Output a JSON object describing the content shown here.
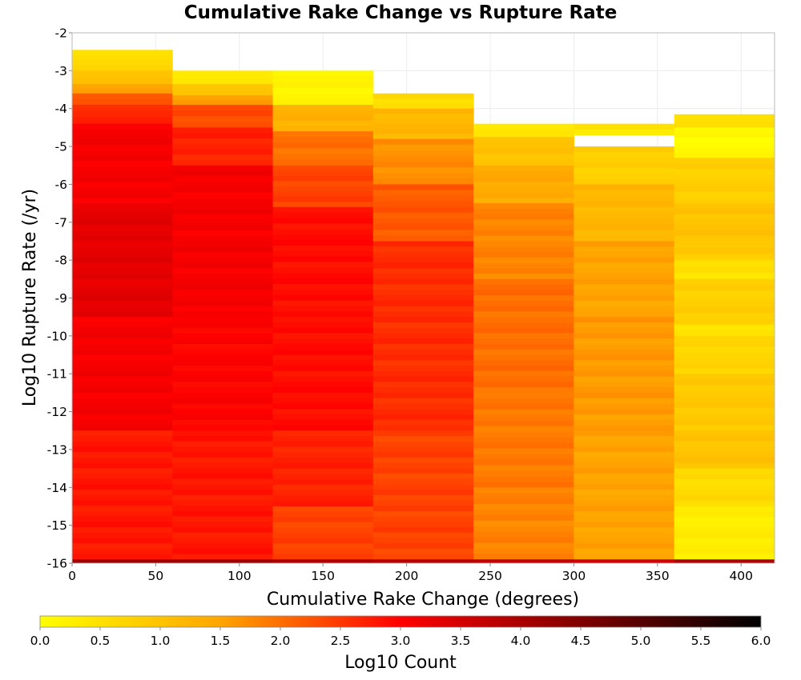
{
  "chart_data": {
    "type": "heatmap",
    "title": "Cumulative Rake Change vs Rupture Rate",
    "xlabel": "Cumulative Rake Change (degrees)",
    "ylabel": "Log10 Rupture Rate (/yr)",
    "xlim": [
      0,
      420
    ],
    "ylim": [
      -16,
      -2
    ],
    "x_ticks": [
      "0",
      "50",
      "100",
      "150",
      "200",
      "250",
      "300",
      "350",
      "400"
    ],
    "y_ticks": [
      "-2",
      "-3",
      "-4",
      "-5",
      "-6",
      "-7",
      "-8",
      "-9",
      "-10",
      "-11",
      "-12",
      "-13",
      "-14",
      "-15",
      "-16"
    ],
    "grid": true,
    "x_bin_width": 60,
    "y_bin_height": 0.144,
    "colorbar": {
      "label": "Log10 Count",
      "range": [
        0.0,
        6.0
      ],
      "ticks": [
        "0.0",
        "0.5",
        "1.0",
        "1.5",
        "2.0",
        "2.5",
        "3.0",
        "3.5",
        "4.0",
        "4.5",
        "5.0",
        "5.5",
        "6.0"
      ],
      "colors": [
        "#ffff00",
        "#ffa500",
        "#ff0000",
        "#000000"
      ],
      "stops": [
        0.0,
        1.5,
        3.0,
        6.0
      ]
    },
    "columns": [
      {
        "x": 0,
        "top": -2.45,
        "bottom_value": 4.2,
        "segments": [
          {
            "to": -3.0,
            "v": 0.6
          },
          {
            "to": -3.35,
            "v": 1.1
          },
          {
            "to": -3.6,
            "v": 1.6
          },
          {
            "to": -3.9,
            "v": 2.3
          },
          {
            "to": -4.4,
            "v": 2.7
          },
          {
            "to": -6.5,
            "v": 3.1
          },
          {
            "to": -9.5,
            "v": 3.3
          },
          {
            "to": -12.5,
            "v": 3.1
          },
          {
            "to": -15.9,
            "v": 2.8
          }
        ]
      },
      {
        "x": 60,
        "top": -3.0,
        "bottom_value": 4.2,
        "segments": [
          {
            "to": -3.35,
            "v": 0.3
          },
          {
            "to": -3.65,
            "v": 0.9
          },
          {
            "to": -3.9,
            "v": 1.5
          },
          {
            "to": -4.5,
            "v": 2.3
          },
          {
            "to": -5.5,
            "v": 2.7
          },
          {
            "to": -9.5,
            "v": 3.1
          },
          {
            "to": -12.5,
            "v": 3.0
          },
          {
            "to": -15.9,
            "v": 2.8
          }
        ]
      },
      {
        "x": 120,
        "top": -3.0,
        "bottom_value": 4.0,
        "segments": [
          {
            "to": -3.9,
            "v": 0.2
          },
          {
            "to": -4.6,
            "v": 1.3
          },
          {
            "to": -5.5,
            "v": 2.0
          },
          {
            "to": -6.6,
            "v": 2.4
          },
          {
            "to": -9.5,
            "v": 2.9
          },
          {
            "to": -12.5,
            "v": 2.9
          },
          {
            "to": -14.5,
            "v": 2.7
          },
          {
            "to": -15.9,
            "v": 2.4
          }
        ]
      },
      {
        "x": 180,
        "top": -3.6,
        "bottom_value": 3.9,
        "segments": [
          {
            "to": -4.0,
            "v": 0.6
          },
          {
            "to": -4.8,
            "v": 1.2
          },
          {
            "to": -6.0,
            "v": 1.7
          },
          {
            "to": -7.5,
            "v": 2.2
          },
          {
            "to": -10.5,
            "v": 2.6
          },
          {
            "to": -12.5,
            "v": 2.6
          },
          {
            "to": -15.9,
            "v": 2.4
          }
        ]
      },
      {
        "x": 240,
        "top": -4.4,
        "bottom_value": 3.8,
        "segments": [
          {
            "to": -4.75,
            "v": 0.4
          },
          {
            "to": -5.5,
            "v": 1.0
          },
          {
            "to": -6.5,
            "v": 1.4
          },
          {
            "to": -8.5,
            "v": 1.8
          },
          {
            "to": -11.5,
            "v": 2.0
          },
          {
            "to": -14.0,
            "v": 1.9
          },
          {
            "to": -15.9,
            "v": 1.8
          }
        ]
      },
      {
        "x": 300,
        "top": -4.4,
        "gap": [
          -4.7,
          -5.0
        ],
        "bottom_value": 3.6,
        "segments": [
          {
            "to": -4.7,
            "v": 0.4
          },
          {
            "to": -5.0,
            "v": null
          },
          {
            "to": -6.0,
            "v": 0.8
          },
          {
            "to": -7.5,
            "v": 1.2
          },
          {
            "to": -9.5,
            "v": 1.5
          },
          {
            "to": -12.5,
            "v": 1.6
          },
          {
            "to": -15.9,
            "v": 1.5
          }
        ]
      },
      {
        "x": 360,
        "top": -4.15,
        "bottom_value": 4.0,
        "segments": [
          {
            "to": -4.5,
            "v": 0.5
          },
          {
            "to": -5.3,
            "v": 0.1
          },
          {
            "to": -6.5,
            "v": 0.8
          },
          {
            "to": -7.5,
            "v": 1.0
          },
          {
            "to": -8.0,
            "v": 0.9
          },
          {
            "to": -8.5,
            "v": 0.5
          },
          {
            "to": -9.7,
            "v": 0.8
          },
          {
            "to": -10.0,
            "v": 0.4
          },
          {
            "to": -11.0,
            "v": 0.7
          },
          {
            "to": -12.5,
            "v": 0.9
          },
          {
            "to": -13.5,
            "v": 1.0
          },
          {
            "to": -14.5,
            "v": 0.6
          },
          {
            "to": -15.9,
            "v": 0.3
          }
        ]
      }
    ]
  }
}
